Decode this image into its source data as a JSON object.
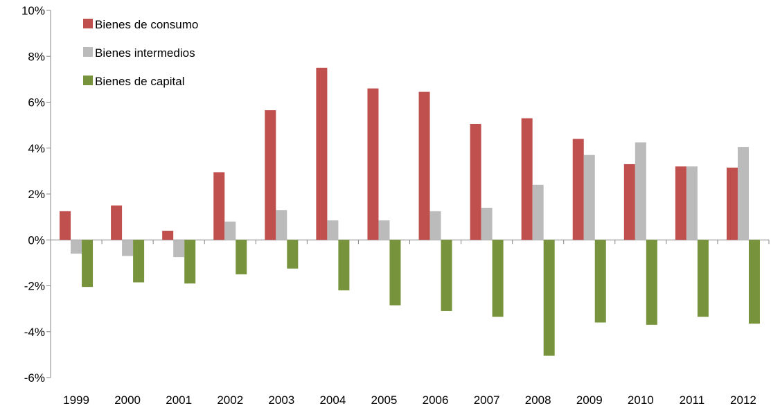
{
  "chart_data": {
    "type": "bar",
    "categories": [
      "1999",
      "2000",
      "2001",
      "2002",
      "2003",
      "2004",
      "2005",
      "2006",
      "2007",
      "2008",
      "2009",
      "2010",
      "2011",
      "2012"
    ],
    "series": [
      {
        "name": "Bienes de consumo",
        "color": "#c0504d",
        "values": [
          1.25,
          1.5,
          0.4,
          2.95,
          5.65,
          7.5,
          6.6,
          6.45,
          5.05,
          5.3,
          4.4,
          3.3,
          3.2,
          3.15
        ]
      },
      {
        "name": "Bienes intermedios",
        "color": "#bbbbbb",
        "values": [
          -0.6,
          -0.7,
          -0.75,
          0.8,
          1.3,
          0.85,
          0.85,
          1.25,
          1.4,
          2.4,
          3.7,
          4.25,
          3.2,
          4.05
        ]
      },
      {
        "name": "Bienes de capital",
        "color": "#77933c",
        "values": [
          -2.05,
          -1.85,
          -1.9,
          -1.5,
          -1.25,
          -2.2,
          -2.85,
          -3.1,
          -3.35,
          -5.05,
          -3.6,
          -3.7,
          -3.35,
          -3.65
        ]
      }
    ],
    "ylim": [
      -6,
      10
    ],
    "yticks": [
      -6,
      -4,
      -2,
      0,
      2,
      4,
      6,
      8,
      10
    ],
    "ytick_labels": [
      "-6%",
      "-4%",
      "-2%",
      "0%",
      "2%",
      "4%",
      "6%",
      "8%",
      "10%"
    ],
    "title": "",
    "xlabel": "",
    "ylabel": "",
    "grid": false,
    "legend_position": "top-left"
  }
}
